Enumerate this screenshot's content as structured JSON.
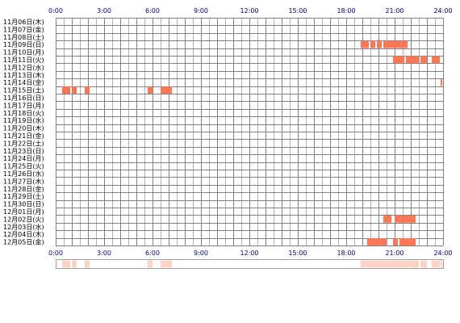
{
  "chart_data": {
    "type": "heatmap",
    "title": "",
    "xlabel": "",
    "ylabel": "",
    "xlim": [
      0,
      24
    ],
    "x_ticks": [
      "0:00",
      "3:00",
      "6:00",
      "9:00",
      "12:00",
      "15:00",
      "18:00",
      "21:00",
      "24:00"
    ],
    "rows": [
      "11月06日(木)",
      "11月07日(金)",
      "11月08日(土)",
      "11月09日(日)",
      "11月10日(月)",
      "11月11日(火)",
      "11月12日(水)",
      "11月13日(木)",
      "11月14日(金)",
      "11月15日(土)",
      "11月16日(日)",
      "11月17日(月)",
      "11月18日(火)",
      "11月19日(水)",
      "11月20日(木)",
      "11月21日(金)",
      "11月22日(土)",
      "11月23日(日)",
      "11月24日(月)",
      "11月25日(火)",
      "11月26日(水)",
      "11月27日(木)",
      "11月28日(金)",
      "11月29日(土)",
      "11月30日(日)",
      "12月01日(月)",
      "12月02日(火)",
      "12月03日(水)",
      "12月04日(木)",
      "12月05日(金)"
    ],
    "segments": [
      {
        "row": 3,
        "start": 18.9,
        "end": 19.4
      },
      {
        "row": 3,
        "start": 19.5,
        "end": 19.8
      },
      {
        "row": 3,
        "start": 19.9,
        "end": 20.2
      },
      {
        "row": 3,
        "start": 20.3,
        "end": 21.8
      },
      {
        "row": 5,
        "start": 20.9,
        "end": 21.6
      },
      {
        "row": 5,
        "start": 21.7,
        "end": 22.5
      },
      {
        "row": 5,
        "start": 22.6,
        "end": 23.0
      },
      {
        "row": 5,
        "start": 23.3,
        "end": 23.8
      },
      {
        "row": 8,
        "start": 23.85,
        "end": 23.95
      },
      {
        "row": 9,
        "start": 0.4,
        "end": 0.9
      },
      {
        "row": 9,
        "start": 1.0,
        "end": 1.3
      },
      {
        "row": 9,
        "start": 1.8,
        "end": 2.1
      },
      {
        "row": 9,
        "start": 5.7,
        "end": 6.0
      },
      {
        "row": 9,
        "start": 6.5,
        "end": 7.2
      },
      {
        "row": 26,
        "start": 20.3,
        "end": 20.8
      },
      {
        "row": 26,
        "start": 21.0,
        "end": 22.3
      },
      {
        "row": 29,
        "start": 19.3,
        "end": 20.5
      },
      {
        "row": 29,
        "start": 20.9,
        "end": 21.2
      },
      {
        "row": 29,
        "start": 21.3,
        "end": 22.3
      }
    ],
    "colors": {
      "segment": "#ff7755",
      "grid_major": "#808080",
      "grid_minor": "#b0b0b0",
      "plot_background": "#ffffff",
      "axis_text": "#000080",
      "summary_segment": "#ffd4c4"
    }
  }
}
